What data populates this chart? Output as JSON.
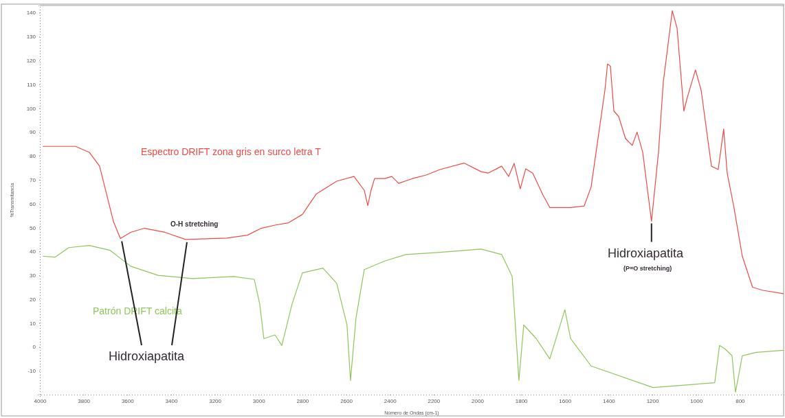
{
  "chart_data": {
    "type": "line",
    "xlabel": "Número de Ondas (cm-1)",
    "ylabel": "%Transmitancia",
    "xlim": [
      4000,
      600
    ],
    "ylim": [
      -20,
      143
    ],
    "xticks": [
      4000,
      3800,
      3600,
      3400,
      3200,
      3000,
      2800,
      2600,
      2400,
      2200,
      2000,
      1800,
      1600,
      1400,
      1200,
      1000,
      800
    ],
    "yticks": [
      -10,
      0,
      10,
      20,
      30,
      40,
      50,
      60,
      70,
      80,
      90,
      100,
      110,
      120,
      130,
      140
    ],
    "grid": false,
    "legend": false,
    "marker": "none",
    "line_style": "solid",
    "annotations": [
      "O-H stretching",
      {
        "text": "Hidroxiapatita",
        "x": 3632,
        "y": 45.4
      },
      {
        "text": "Hidroxiapatita",
        "x": 1204,
        "y": 52.6
      },
      "(P=O stretching)"
    ],
    "series": [
      {
        "name": "Espectro DRIFT zona gris en surco letra T",
        "color": "#ee4a45",
        "x": [
          3987,
          3837,
          3774,
          3727,
          3695,
          3664,
          3632,
          3585,
          3522,
          3428,
          3334,
          3145,
          3051,
          2988,
          2925,
          2863,
          2800,
          2737,
          2643,
          2564,
          2517,
          2501,
          2486,
          2470,
          2423,
          2391,
          2360,
          2297,
          2234,
          2171,
          2061,
          1983,
          1951,
          1889,
          1857,
          1832,
          1804,
          1779,
          1747,
          1700,
          1669,
          1574,
          1512,
          1480,
          1449,
          1417,
          1405,
          1392,
          1376,
          1354,
          1323,
          1292,
          1270,
          1244,
          1204,
          1172,
          1150,
          1109,
          1087,
          1056,
          1040,
          1003,
          977,
          930,
          899,
          874,
          858,
          827,
          789,
          742,
          695,
          600
        ],
        "values": [
          84,
          84,
          81.5,
          75.7,
          64,
          52.6,
          45.4,
          48,
          49.7,
          48,
          45.0,
          45.6,
          46.8,
          49.7,
          51,
          52,
          55.5,
          64,
          69.4,
          71.4,
          65.6,
          59.2,
          65.6,
          70.5,
          70.5,
          71.4,
          68.5,
          70.5,
          72,
          74.3,
          77,
          73.4,
          72.8,
          75.7,
          71.4,
          76.9,
          66.2,
          74.6,
          72.8,
          63.6,
          58.4,
          58.4,
          59,
          67,
          87,
          107.5,
          118.5,
          117.6,
          98.8,
          96.5,
          87.3,
          84.4,
          90,
          81.5,
          52.6,
          81.5,
          111,
          140.8,
          133.5,
          98.8,
          104.6,
          116,
          107.5,
          75.7,
          74.3,
          91.3,
          72.8,
          58.4,
          38,
          25,
          23.7,
          22.3
        ]
      },
      {
        "name": "Patrón DRIFT calcita",
        "color": "#8fc65a",
        "x": [
          3987,
          3931,
          3868,
          3774,
          3680,
          3585,
          3460,
          3302,
          3114,
          3020,
          2995,
          2976,
          2925,
          2894,
          2847,
          2800,
          2706,
          2643,
          2596,
          2580,
          2555,
          2517,
          2423,
          2328,
          2171,
          1983,
          1889,
          1841,
          1810,
          1788,
          1731,
          1669,
          1622,
          1600,
          1574,
          1480,
          1197,
          915,
          893,
          868,
          836,
          820,
          789,
          726,
          600
        ],
        "values": [
          38,
          37.6,
          41.6,
          42.5,
          40.5,
          33.8,
          30,
          28.6,
          29.5,
          28.3,
          18,
          3.5,
          5,
          0.6,
          18,
          31,
          33,
          26.6,
          9.2,
          -14,
          12,
          32.4,
          36,
          38.7,
          39.6,
          41,
          38.7,
          29.5,
          -14,
          9.2,
          3.5,
          -5,
          9,
          15.6,
          3.5,
          -8,
          -17,
          -15,
          0.6,
          -0.8,
          -3.7,
          -19,
          -3.7,
          -2.3,
          -1.4
        ]
      }
    ]
  }
}
